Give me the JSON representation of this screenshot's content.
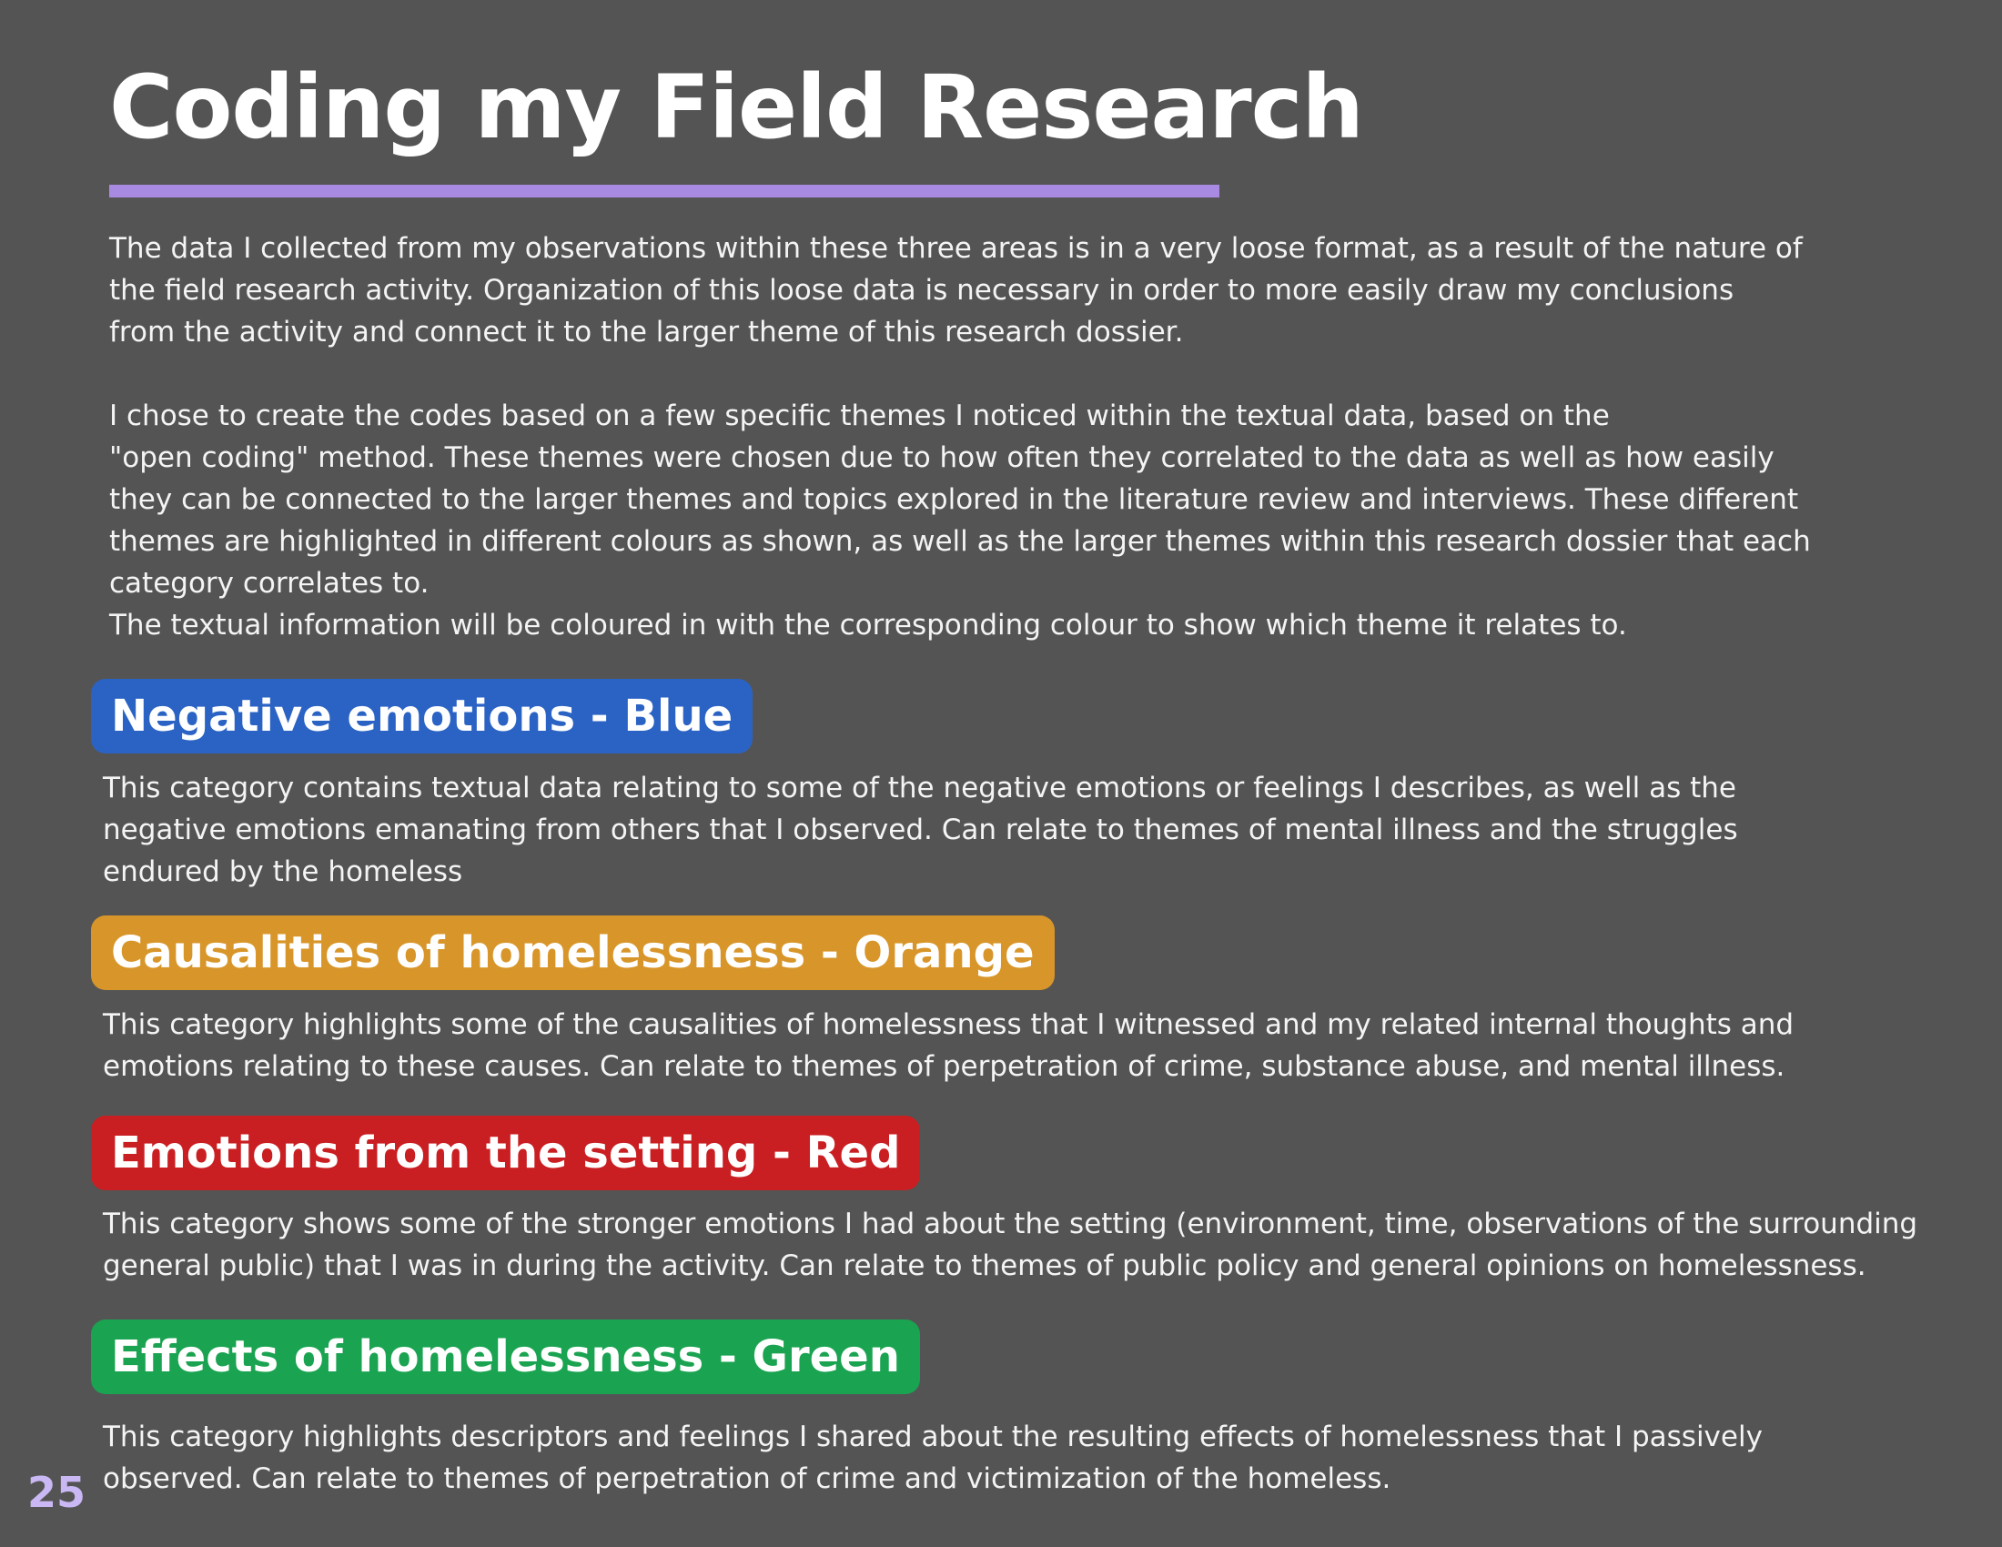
{
  "page": {
    "title": "Coding my Field Research",
    "accent_color": "#a98ae2",
    "page_number": "25"
  },
  "intro": {
    "paragraph_1": "The data I collected from my observations within these three areas is in a very loose format, as a result of the nature of\nthe field research activity. Organization of this loose data is necessary in order to more easily draw my conclusions\nfrom the activity and connect it to the larger theme of this research dossier.",
    "paragraph_2": "I chose to create the codes based on a few specific themes I noticed within the textual data, based on the\n\"open coding\" method. These themes were chosen due to how often they correlated to the data as well as how easily\nthey can be connected to the larger themes and topics explored in the literature review and interviews. These different\nthemes are highlighted in different colours as shown, as well as the larger themes within this research dossier that each\ncategory correlates to.",
    "paragraph_3": "The textual information will be coloured in with the corresponding colour to show which theme it relates to."
  },
  "categories": [
    {
      "label": "Negative emotions - Blue",
      "color": "#2b63c4",
      "description": "This category contains textual data relating to some of the negative emotions or feelings I describes, as well as the\nnegative emotions emanating from others that I observed. Can relate to themes of mental illness and the struggles\nendured by the homeless"
    },
    {
      "label": "Causalities of homelessness - Orange",
      "color": "#d8962a",
      "description": "This category highlights some of the causalities of homelessness that I witnessed and my related internal thoughts and\nemotions relating to these causes. Can relate to themes of perpetration of crime, substance abuse, and mental illness."
    },
    {
      "label": "Emotions from the setting - Red",
      "color": "#c91f22",
      "description": "This category shows some of the stronger emotions I had about the setting (environment, time, observations of the surrounding\ngeneral public) that I was in during the activity. Can relate to themes of public policy and general opinions on homelessness."
    },
    {
      "label": "Effects of homelessness - Green",
      "color": "#1aa350",
      "description": "This category highlights descriptors and feelings I shared about the resulting effects of homelessness that I passively\nobserved. Can relate to themes of perpetration of crime and victimization of the homeless."
    }
  ]
}
